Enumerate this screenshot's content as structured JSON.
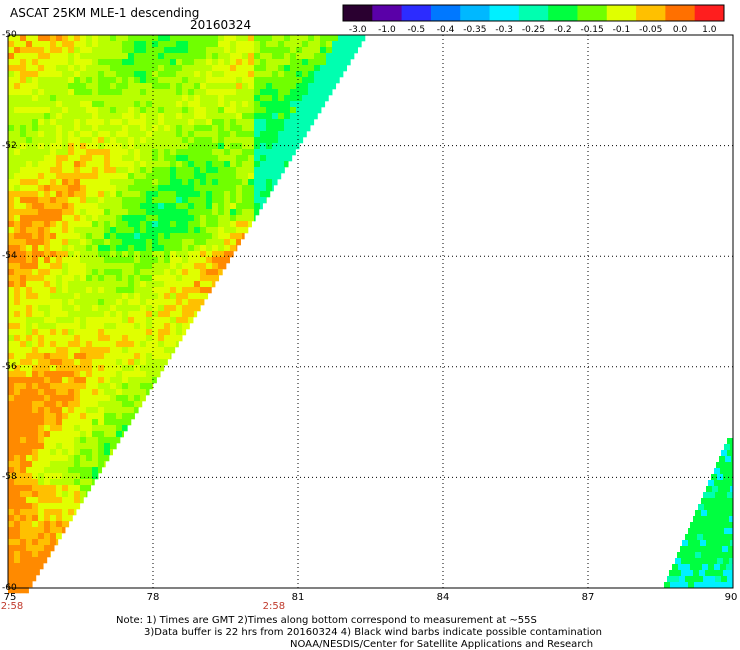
{
  "header": {
    "title": "ASCAT 25KM MLE-1 descending",
    "date": "20160324"
  },
  "colorbar": {
    "labels": [
      "-3.0",
      "-1.0",
      "-0.5",
      "-0.4",
      "-0.35",
      "-0.3",
      "-0.25",
      "-0.2",
      "-0.15",
      "-0.1",
      "-0.05",
      "0.0",
      "1.0"
    ],
    "colors": [
      "#2a0030",
      "#5a00a8",
      "#2c2cff",
      "#0078ff",
      "#00b8ff",
      "#00f0ff",
      "#00ffb0",
      "#00ff40",
      "#70ff00",
      "#e0ff00",
      "#ffc000",
      "#ff7000",
      "#ff1e1e"
    ]
  },
  "axes": {
    "y_labels": [
      "-50",
      "-52",
      "-54",
      "-56",
      "-58",
      "-60"
    ],
    "x_labels": [
      "75",
      "78",
      "81",
      "84",
      "87",
      "90"
    ],
    "lon_range": [
      75,
      90
    ],
    "lat_range": [
      -60,
      -50
    ],
    "grid": true
  },
  "time_labels": [
    {
      "lon": 75,
      "text": "2:58"
    },
    {
      "lon": 80.5,
      "text": "2:58"
    }
  ],
  "notes": {
    "line1": "Note: 1) Times are GMT 2)Times along bottom correspond to measurement at ~55S",
    "line2": "3)Data buffer is 22 hrs from 20160324 4) Black wind barbs indicate possible contamination",
    "line3": "NOAA/NESDIS/Center for Satellite Applications and Research"
  }
}
